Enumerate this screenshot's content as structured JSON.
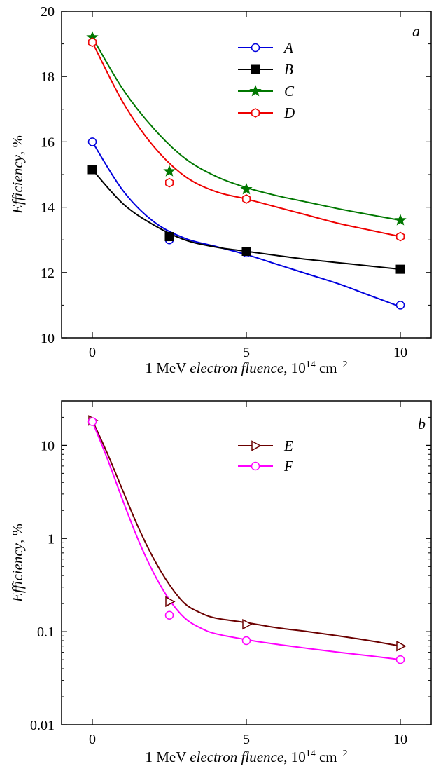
{
  "chart_data": [
    {
      "panel": "a",
      "type": "line",
      "scale": "linear",
      "xlabel": {
        "prefix": "1 MeV ",
        "emph": "electron fluence",
        "unit": ", 10",
        "exp1": "14",
        "unit2": " cm",
        "exp2": "−2"
      },
      "ylabel": {
        "emph": "Efficiency",
        "unit": ", %"
      },
      "xlim": [
        -1,
        11
      ],
      "ylim": [
        10,
        20
      ],
      "xticks": [
        0,
        5,
        10
      ],
      "yticks": [
        10,
        12,
        14,
        16,
        18,
        20
      ],
      "ytick_labels": [
        "10",
        "12",
        "14",
        "16",
        "18",
        "20"
      ],
      "grid": false,
      "legend_position": "top-center",
      "series": [
        {
          "name": "A",
          "color": "#0000dd",
          "marker": "open-circle",
          "x": [
            0,
            2.5,
            5,
            10
          ],
          "y": [
            16.0,
            13.0,
            12.6,
            11.0
          ],
          "fit": [
            [
              0,
              16.0
            ],
            [
              1,
              14.5
            ],
            [
              2,
              13.55
            ],
            [
              3,
              13.05
            ],
            [
              4,
              12.8
            ],
            [
              5,
              12.55
            ],
            [
              6,
              12.25
            ],
            [
              7,
              11.95
            ],
            [
              8,
              11.65
            ],
            [
              9,
              11.3
            ],
            [
              10,
              10.95
            ]
          ]
        },
        {
          "name": "B",
          "color": "#000000",
          "marker": "filled-square",
          "x": [
            0,
            2.5,
            5,
            10
          ],
          "y": [
            15.15,
            13.1,
            12.65,
            12.1
          ],
          "fit": [
            [
              0,
              15.15
            ],
            [
              1,
              14.1
            ],
            [
              2,
              13.45
            ],
            [
              3,
              13.0
            ],
            [
              4,
              12.78
            ],
            [
              5,
              12.65
            ],
            [
              6,
              12.52
            ],
            [
              7,
              12.4
            ],
            [
              8,
              12.3
            ],
            [
              9,
              12.2
            ],
            [
              10,
              12.1
            ]
          ]
        },
        {
          "name": "C",
          "color": "#007700",
          "marker": "filled-star",
          "x": [
            0,
            2.5,
            5,
            10
          ],
          "y": [
            19.2,
            15.1,
            14.55,
            13.6
          ],
          "fit": [
            [
              0,
              19.2
            ],
            [
              1,
              17.6
            ],
            [
              2,
              16.4
            ],
            [
              3,
              15.5
            ],
            [
              4,
              14.95
            ],
            [
              5,
              14.6
            ],
            [
              6,
              14.35
            ],
            [
              7,
              14.15
            ],
            [
              8,
              13.95
            ],
            [
              9,
              13.77
            ],
            [
              10,
              13.6
            ]
          ]
        },
        {
          "name": "D",
          "color": "#ee0000",
          "marker": "open-hexagon",
          "x": [
            0,
            2.5,
            5,
            10
          ],
          "y": [
            19.05,
            14.75,
            14.25,
            13.1
          ],
          "fit": [
            [
              0,
              19.05
            ],
            [
              1,
              17.2
            ],
            [
              2,
              15.85
            ],
            [
              3,
              14.95
            ],
            [
              4,
              14.48
            ],
            [
              5,
              14.25
            ],
            [
              6,
              14.0
            ],
            [
              7,
              13.75
            ],
            [
              8,
              13.5
            ],
            [
              9,
              13.3
            ],
            [
              10,
              13.1
            ]
          ]
        }
      ]
    },
    {
      "panel": "b",
      "type": "line",
      "scale": "log",
      "xlabel": {
        "prefix": "1 MeV ",
        "emph": "electron fluence",
        "unit": ", 10",
        "exp1": "14",
        "unit2": " cm",
        "exp2": "−2"
      },
      "ylabel": {
        "emph": "Efficiency",
        "unit": ", %"
      },
      "xlim": [
        -1,
        11
      ],
      "ylim": [
        0.01,
        30
      ],
      "xticks": [
        0,
        5,
        10
      ],
      "yticks": [
        0.01,
        0.1,
        1,
        10
      ],
      "ytick_labels": [
        "0.01",
        "0.1",
        "1",
        "10"
      ],
      "grid": false,
      "legend_position": "top-center",
      "series": [
        {
          "name": "E",
          "color": "#6b0000",
          "marker": "open-triangle-right",
          "x": [
            0,
            2.5,
            5,
            10
          ],
          "y": [
            18.5,
            0.21,
            0.12,
            0.07
          ],
          "fit": [
            [
              0,
              18.5
            ],
            [
              0.5,
              8.0
            ],
            [
              1,
              3.2
            ],
            [
              1.5,
              1.3
            ],
            [
              2,
              0.6
            ],
            [
              2.5,
              0.32
            ],
            [
              3,
              0.2
            ],
            [
              3.5,
              0.16
            ],
            [
              4,
              0.14
            ],
            [
              5,
              0.125
            ],
            [
              6,
              0.11
            ],
            [
              7,
              0.1
            ],
            [
              8,
              0.09
            ],
            [
              9,
              0.08
            ],
            [
              10,
              0.07
            ]
          ]
        },
        {
          "name": "F",
          "color": "#ff00ff",
          "marker": "open-circle",
          "x": [
            0,
            2.5,
            5,
            10
          ],
          "y": [
            18.0,
            0.15,
            0.08,
            0.05
          ],
          "fit": [
            [
              0,
              18.0
            ],
            [
              0.5,
              7.0
            ],
            [
              1,
              2.5
            ],
            [
              1.5,
              0.95
            ],
            [
              2,
              0.42
            ],
            [
              2.5,
              0.22
            ],
            [
              3,
              0.14
            ],
            [
              3.5,
              0.11
            ],
            [
              4,
              0.095
            ],
            [
              5,
              0.082
            ],
            [
              6,
              0.073
            ],
            [
              7,
              0.066
            ],
            [
              8,
              0.06
            ],
            [
              9,
              0.055
            ],
            [
              10,
              0.05
            ]
          ]
        }
      ]
    }
  ]
}
